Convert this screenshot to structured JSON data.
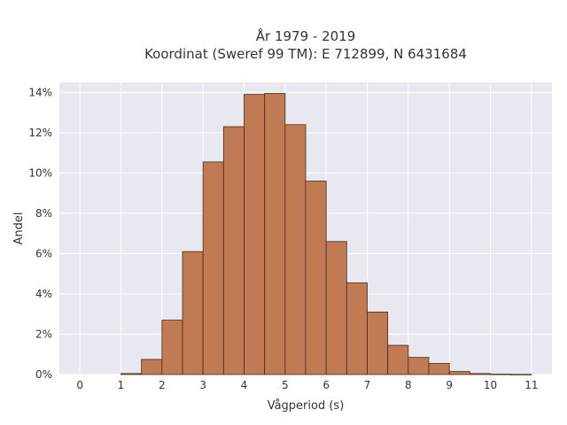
{
  "chart_data": {
    "type": "bar",
    "title_line1": "År 1979 - 2019",
    "title_line2": "Koordinat (Sweref 99 TM): E 712899, N 6431684",
    "xlabel": "Vågperiod (s)",
    "ylabel": "Andel",
    "xlim": [
      -0.5,
      11.5
    ],
    "ylim": [
      0,
      14.5
    ],
    "x_ticks": [
      0,
      1,
      2,
      3,
      4,
      5,
      6,
      7,
      8,
      9,
      10,
      11
    ],
    "x_tick_labels": [
      "0",
      "1",
      "2",
      "3",
      "4",
      "5",
      "6",
      "7",
      "8",
      "9",
      "10",
      "11"
    ],
    "y_ticks": [
      0,
      2,
      4,
      6,
      8,
      10,
      12,
      14
    ],
    "y_tick_labels": [
      "0%",
      "2%",
      "4%",
      "6%",
      "8%",
      "10%",
      "12%",
      "14%"
    ],
    "bin_width": 0.5,
    "bins": [
      {
        "start": 1.0,
        "value": 0.05
      },
      {
        "start": 1.5,
        "value": 0.75
      },
      {
        "start": 2.0,
        "value": 2.7
      },
      {
        "start": 2.5,
        "value": 6.1
      },
      {
        "start": 3.0,
        "value": 10.55
      },
      {
        "start": 3.5,
        "value": 12.3
      },
      {
        "start": 4.0,
        "value": 13.9
      },
      {
        "start": 4.5,
        "value": 13.95
      },
      {
        "start": 5.0,
        "value": 12.4
      },
      {
        "start": 5.5,
        "value": 9.6
      },
      {
        "start": 6.0,
        "value": 6.6
      },
      {
        "start": 6.5,
        "value": 4.55
      },
      {
        "start": 7.0,
        "value": 3.1
      },
      {
        "start": 7.5,
        "value": 1.45
      },
      {
        "start": 8.0,
        "value": 0.85
      },
      {
        "start": 8.5,
        "value": 0.55
      },
      {
        "start": 9.0,
        "value": 0.15
      },
      {
        "start": 9.5,
        "value": 0.05
      },
      {
        "start": 10.0,
        "value": 0.02
      },
      {
        "start": 10.5,
        "value": 0.01
      }
    ],
    "grid": true,
    "colors": {
      "bar_fill": "#c07b54",
      "bar_stroke": "#4a2a18",
      "plot_bg": "#e8e8f1",
      "grid": "#ffffff"
    }
  }
}
